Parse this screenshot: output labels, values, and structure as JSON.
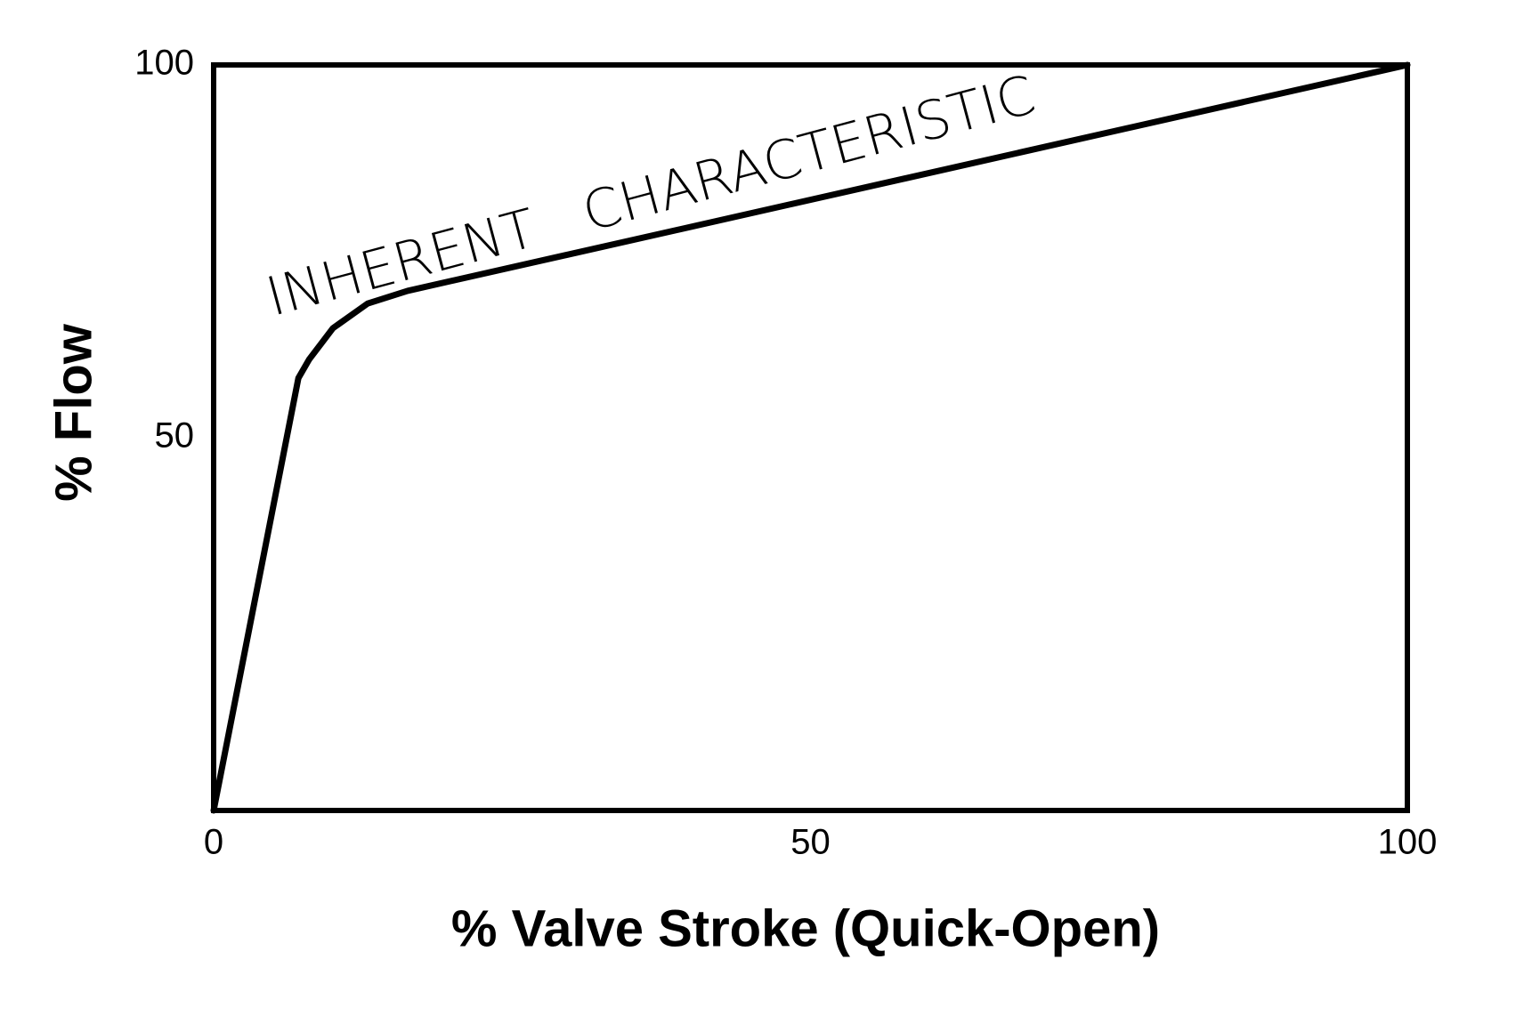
{
  "chart_data": {
    "type": "line",
    "annotation": "INHERENT   CHARACTERISTIC",
    "xlabel": "% Valve Stroke (Quick-Open)",
    "ylabel": "% Flow",
    "x": [
      0,
      7.1,
      8,
      10,
      12.9,
      16.25,
      100
    ],
    "series": [
      {
        "color": "#000000",
        "values": [
          0,
          58,
          60.5,
          64.7,
          68,
          69.7,
          100
        ]
      }
    ],
    "xlim": [
      0,
      100
    ],
    "xticks": [
      0,
      50,
      100
    ],
    "ylim": [
      0,
      100
    ],
    "yticks": [
      50,
      100
    ]
  }
}
